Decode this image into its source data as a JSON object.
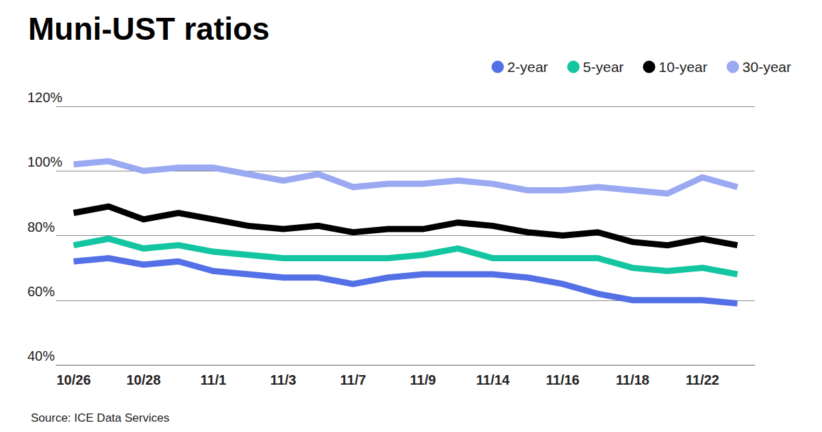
{
  "chart_data": {
    "type": "line",
    "title": "Muni-UST ratios",
    "source": "Source: ICE Data Services",
    "categories": [
      "10/26",
      null,
      "10/28",
      null,
      "11/1",
      null,
      "11/3",
      null,
      "11/7",
      null,
      "11/9",
      null,
      "11/14",
      null,
      "11/16",
      null,
      "11/18",
      null,
      "11/22",
      null
    ],
    "series": [
      {
        "name": "2-year",
        "color": "#5470e6",
        "values": [
          72,
          73,
          71,
          72,
          69,
          68,
          67,
          67,
          65,
          67,
          68,
          68,
          68,
          67,
          65,
          62,
          60,
          60,
          60,
          59
        ]
      },
      {
        "name": "5-year",
        "color": "#14c5a1",
        "values": [
          77,
          79,
          76,
          77,
          75,
          74,
          73,
          73,
          73,
          73,
          74,
          76,
          73,
          73,
          73,
          73,
          70,
          69,
          70,
          68
        ]
      },
      {
        "name": "10-year",
        "color": "#000000",
        "values": [
          87,
          89,
          85,
          87,
          85,
          83,
          82,
          83,
          81,
          82,
          82,
          84,
          83,
          81,
          80,
          81,
          78,
          77,
          79,
          77
        ]
      },
      {
        "name": "30-year",
        "color": "#9aa9f2",
        "values": [
          102,
          103,
          100,
          101,
          101,
          99,
          97,
          99,
          95,
          96,
          96,
          97,
          96,
          94,
          94,
          95,
          94,
          93,
          98,
          95
        ]
      }
    ],
    "ylim": [
      40,
      120
    ],
    "yticks": [
      {
        "value": 40,
        "label": "40%"
      },
      {
        "value": 60,
        "label": "60%"
      },
      {
        "value": 80,
        "label": "80%"
      },
      {
        "value": 100,
        "label": "100%"
      },
      {
        "value": 120,
        "label": "120%"
      }
    ],
    "grid": true,
    "legend": "top-right"
  }
}
